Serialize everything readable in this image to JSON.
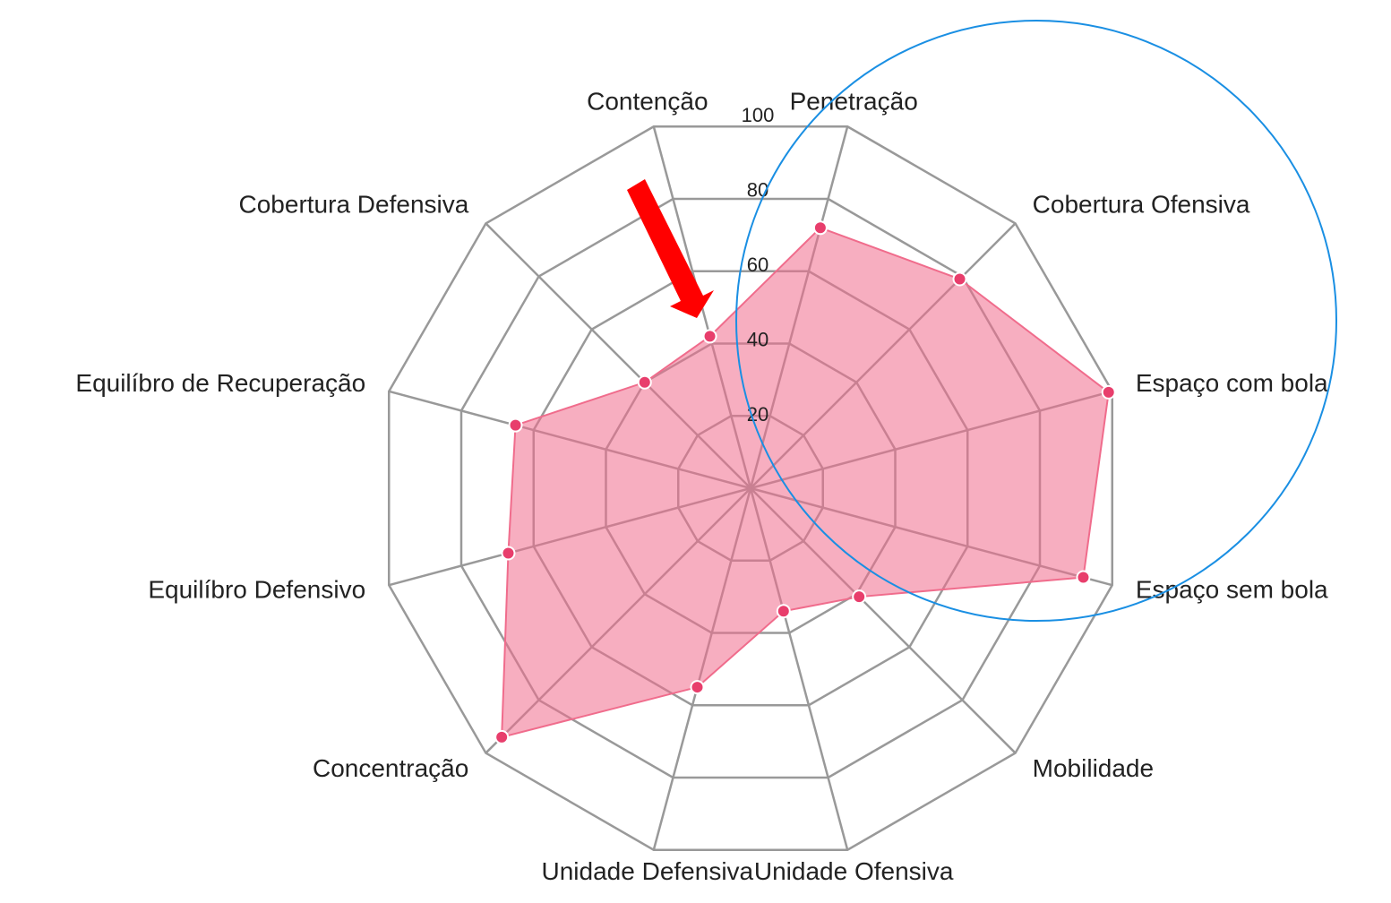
{
  "chart_data": {
    "type": "radar",
    "categories": [
      "Penetração",
      "Cobertura Ofensiva",
      "Espaço com bola",
      "Espaço sem bola",
      "Mobilidade",
      "Unidade Ofensiva",
      "Unidade Defensiva",
      "Concentração",
      "Equilíbro Defensivo",
      "Equilíbro de Recuperação",
      "Cobertura Defensiva",
      "Contenção"
    ],
    "series": [
      {
        "color": "#f06c8c",
        "values": [
          72,
          79,
          99,
          92,
          41,
          34,
          55,
          94,
          67,
          65,
          40,
          42
        ]
      }
    ],
    "rlim": [
      0,
      100
    ],
    "rticks": [
      20,
      40,
      60,
      80,
      100
    ],
    "grid": true
  }
}
